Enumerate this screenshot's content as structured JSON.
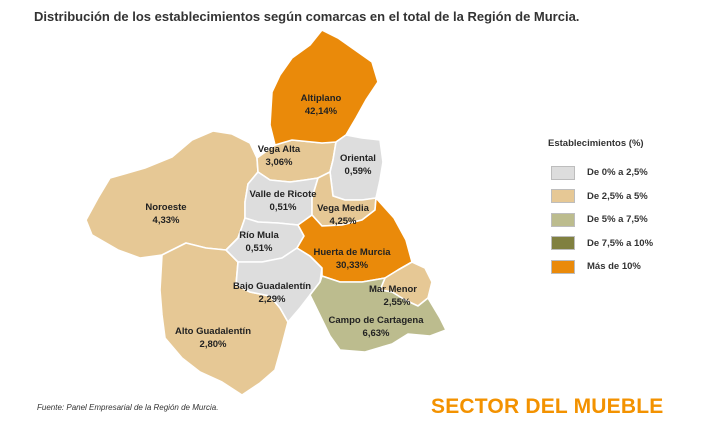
{
  "title": "Distribución de los establecimientos según comarcas en el total de la Región de Murcia.",
  "legend": {
    "title": "Establecimientos (%)",
    "items": [
      {
        "label": "De 0% a 2,5%",
        "color": "#dddddd"
      },
      {
        "label": "De 2,5% a 5%",
        "color": "#e6c895"
      },
      {
        "label": "De 5% a 7,5%",
        "color": "#bcbc8e"
      },
      {
        "label": "De 7,5% a 10%",
        "color": "#808040"
      },
      {
        "label": "Más de 10%",
        "color": "#ea8a0a"
      }
    ]
  },
  "regions": {
    "altiplano": {
      "name": "Altiplano",
      "value": "42,14%",
      "color": "#ea8a0a"
    },
    "vega_alta": {
      "name": "Vega Alta",
      "value": "3,06%",
      "color": "#e6c895"
    },
    "oriental": {
      "name": "Oriental",
      "value": "0,59%",
      "color": "#dddddd"
    },
    "noroeste": {
      "name": "Noroeste",
      "value": "4,33%",
      "color": "#e6c895"
    },
    "valle_ricote": {
      "name": "Valle de Ricote",
      "value": "0,51%",
      "color": "#dddddd"
    },
    "vega_media": {
      "name": "Vega Media",
      "value": "4,25%",
      "color": "#e6c895"
    },
    "rio_mula": {
      "name": "Río Mula",
      "value": "0,51%",
      "color": "#dddddd"
    },
    "huerta_murcia": {
      "name": "Huerta de Murcia",
      "value": "30,33%",
      "color": "#ea8a0a"
    },
    "bajo_guadalentin": {
      "name": "Bajo Guadalentín",
      "value": "2,29%",
      "color": "#dddddd"
    },
    "mar_menor": {
      "name": "Mar Menor",
      "value": "2,55%",
      "color": "#e6c895"
    },
    "campo_cartagena": {
      "name": "Campo de Cartagena",
      "value": "6,63%",
      "color": "#bcbc8e"
    },
    "alto_guadalentin": {
      "name": "Alto Guadalentín",
      "value": "2,80%",
      "color": "#e6c895"
    }
  },
  "source": "Fuente: Panel Empresarial de la Región de Murcia.",
  "brand": "SECTOR DEL MUEBLE"
}
